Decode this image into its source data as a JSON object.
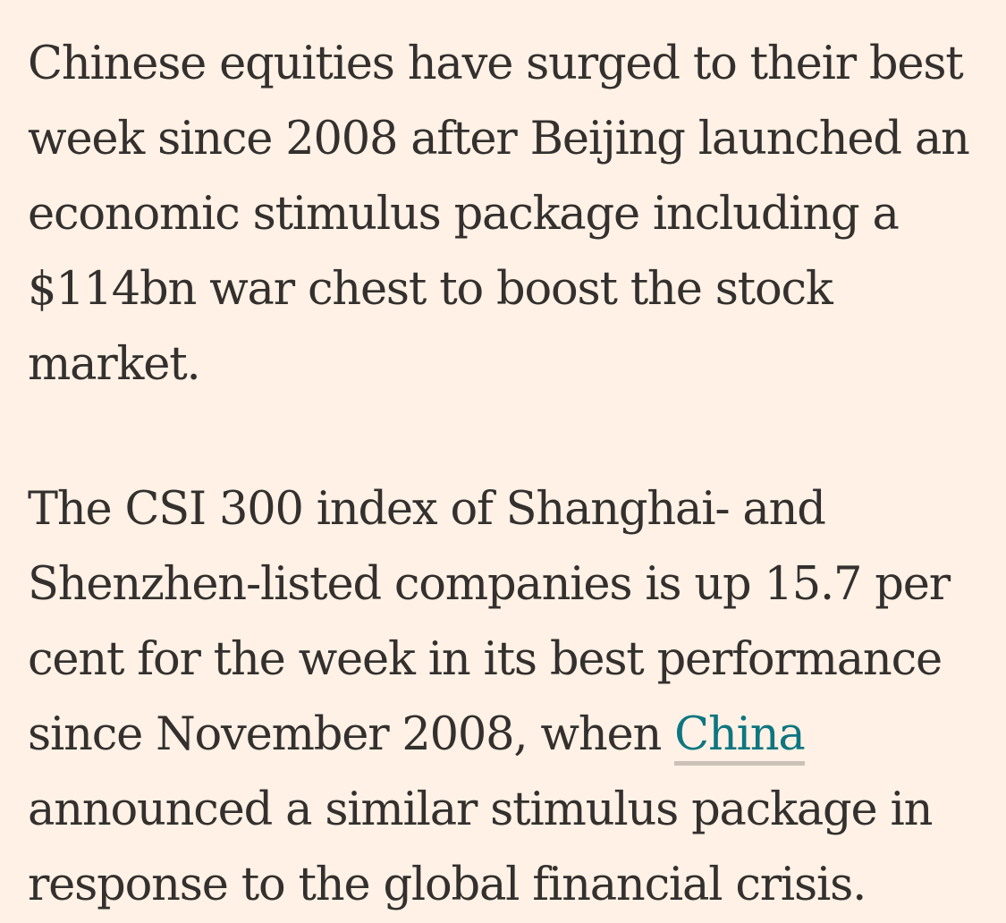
{
  "article": {
    "paragraph_1": "Chinese equities have surged to their best week since 2008 after Beijing launched an economic stimulus package including a $114bn war chest to boost the stock market.",
    "paragraph_2_before_link": "The CSI 300 index of Shanghai- and Shenzhen-listed companies is up 15.7 per cent for the week in its best performance since November 2008, when ",
    "paragraph_2_link": "China",
    "paragraph_2_after_link": " announced a similar stimulus package in response to the global financial crisis."
  },
  "colors": {
    "background": "#fff1e5",
    "text": "#33302e",
    "link": "#0d7680",
    "link_underline": "#ccc1b7"
  }
}
